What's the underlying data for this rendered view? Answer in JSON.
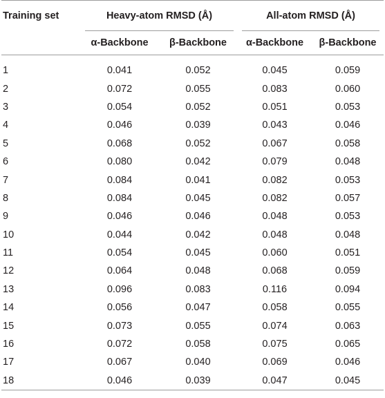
{
  "header": {
    "training_set": "Training set",
    "heavy_atom": "Heavy-atom RMSD (Å)",
    "all_atom": "All-atom RMSD (Å)",
    "alpha_backbone": "α-Backbone",
    "beta_backbone": "β-Backbone"
  },
  "rows": [
    [
      "1",
      "0.041",
      "0.052",
      "0.045",
      "0.059"
    ],
    [
      "2",
      "0.072",
      "0.055",
      "0.083",
      "0.060"
    ],
    [
      "3",
      "0.054",
      "0.052",
      "0.051",
      "0.053"
    ],
    [
      "4",
      "0.046",
      "0.039",
      "0.043",
      "0.046"
    ],
    [
      "5",
      "0.068",
      "0.052",
      "0.067",
      "0.058"
    ],
    [
      "6",
      "0.080",
      "0.042",
      "0.079",
      "0.048"
    ],
    [
      "7",
      "0.084",
      "0.041",
      "0.082",
      "0.053"
    ],
    [
      "8",
      "0.084",
      "0.045",
      "0.082",
      "0.057"
    ],
    [
      "9",
      "0.046",
      "0.046",
      "0.048",
      "0.053"
    ],
    [
      "10",
      "0.044",
      "0.042",
      "0.048",
      "0.048"
    ],
    [
      "11",
      "0.054",
      "0.045",
      "0.060",
      "0.051"
    ],
    [
      "12",
      "0.064",
      "0.048",
      "0.068",
      "0.059"
    ],
    [
      "13",
      "0.096",
      "0.083",
      "0.116",
      "0.094"
    ],
    [
      "14",
      "0.056",
      "0.047",
      "0.058",
      "0.055"
    ],
    [
      "15",
      "0.073",
      "0.055",
      "0.074",
      "0.063"
    ],
    [
      "16",
      "0.072",
      "0.058",
      "0.075",
      "0.065"
    ],
    [
      "17",
      "0.067",
      "0.040",
      "0.069",
      "0.046"
    ],
    [
      "18",
      "0.046",
      "0.039",
      "0.047",
      "0.045"
    ]
  ]
}
